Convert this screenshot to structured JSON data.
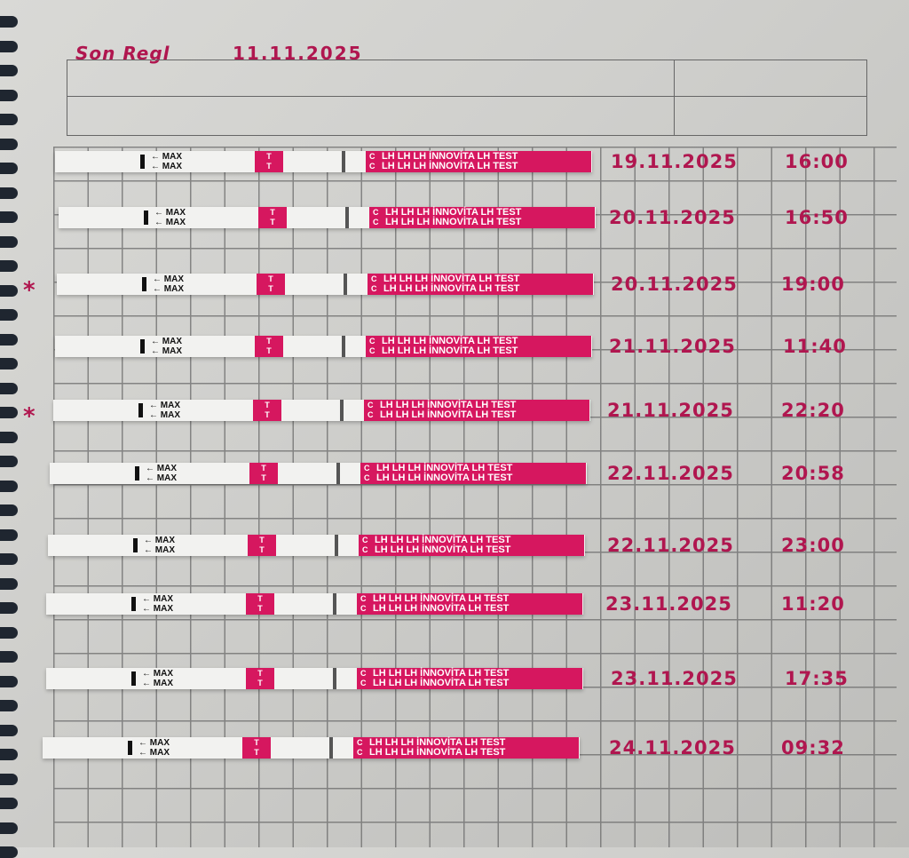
{
  "header": {
    "title": "Son Regl",
    "date": "11.11.2025"
  },
  "strip_labels": {
    "max": "MAX",
    "test_mark": "T",
    "control_mark": "C",
    "brand_text": "LH LH LH İNNOVİTA LH TEST"
  },
  "colors": {
    "ink": "#b0164f",
    "strip_pink": "#d6175f",
    "paper": "#d9d9d6"
  },
  "tests": [
    {
      "date": "19.11.2025",
      "time": "16:00",
      "starred": false,
      "star": ""
    },
    {
      "date": "20.11.2025",
      "time": "16:50",
      "starred": false,
      "star": ""
    },
    {
      "date": "20.11.2025",
      "time": "19:00",
      "starred": true,
      "star": "*"
    },
    {
      "date": "21.11.2025",
      "time": "11:40",
      "starred": false,
      "star": ""
    },
    {
      "date": "21.11.2025",
      "time": "22:20",
      "starred": true,
      "star": "*"
    },
    {
      "date": "22.11.2025",
      "time": "20:58",
      "starred": false,
      "star": ""
    },
    {
      "date": "22.11.2025",
      "time": "23:00",
      "starred": false,
      "star": ""
    },
    {
      "date": "23.11.2025",
      "time": "11:20",
      "starred": false,
      "star": ""
    },
    {
      "date": "23.11.2025",
      "time": "17:35",
      "starred": false,
      "star": ""
    },
    {
      "date": "24.11.2025",
      "time": "09:32",
      "starred": false,
      "star": ""
    }
  ]
}
